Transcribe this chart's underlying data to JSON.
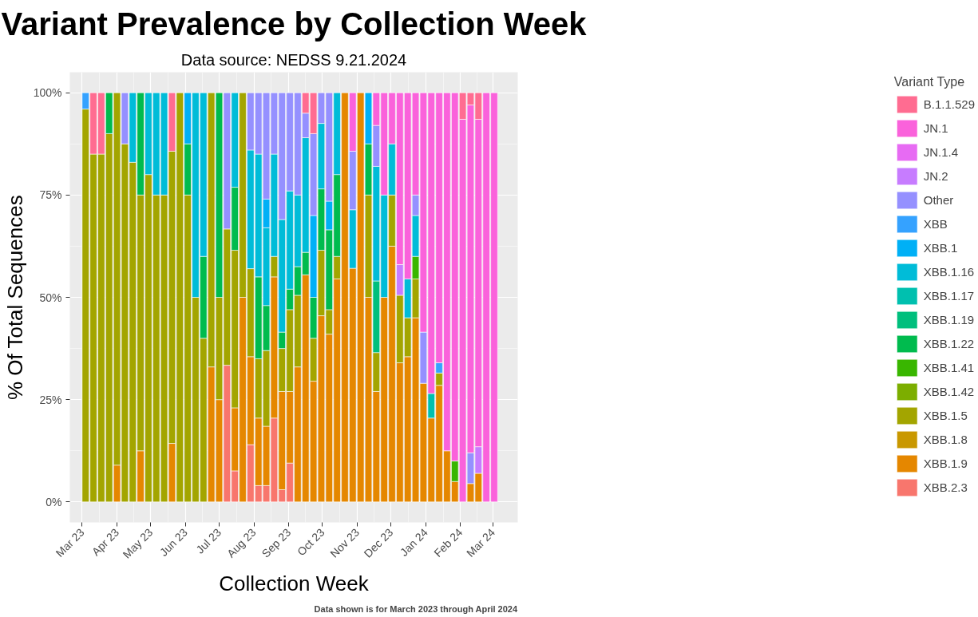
{
  "chart_data": {
    "type": "bar",
    "stacked": true,
    "title": "Variant Prevalence by Collection Week",
    "subtitle": "Data source: NEDSS 9.21.2024",
    "xlabel": "Collection Week",
    "ylabel": "% Of Total Sequences",
    "legend_title": "Variant Type",
    "legend": "right",
    "grid": true,
    "annotations": [
      "Data shown is for March 2023 through April 2024"
    ],
    "x": [
      "2023-03-04",
      "2023-03-11",
      "2023-03-18",
      "2023-03-25",
      "2023-04-01",
      "2023-04-08",
      "2023-04-15",
      "2023-04-22",
      "2023-04-29",
      "2023-05-06",
      "2023-05-13",
      "2023-05-20",
      "2023-05-27",
      "2023-06-03",
      "2023-06-10",
      "2023-06-17",
      "2023-06-24",
      "2023-07-01",
      "2023-07-08",
      "2023-07-15",
      "2023-07-22",
      "2023-07-29",
      "2023-08-05",
      "2023-08-12",
      "2023-08-19",
      "2023-08-26",
      "2023-09-02",
      "2023-09-09",
      "2023-09-16",
      "2023-09-23",
      "2023-09-30",
      "2023-10-07",
      "2023-10-14",
      "2023-10-21",
      "2023-10-28",
      "2023-11-04",
      "2023-11-11",
      "2023-11-18",
      "2023-11-25",
      "2023-12-02",
      "2023-12-09",
      "2023-12-16",
      "2023-12-23",
      "2023-12-30",
      "2024-01-06",
      "2024-01-13",
      "2024-01-20",
      "2024-01-27",
      "2024-02-03",
      "2024-02-10",
      "2024-02-17",
      "2024-02-24",
      "2024-03-02"
    ],
    "xlim": [
      "2023-02-18",
      "2024-03-23"
    ],
    "xticks": [
      {
        "value": "2023-03-01",
        "label": "Mar 23"
      },
      {
        "value": "2023-04-01",
        "label": "Apr 23"
      },
      {
        "value": "2023-05-01",
        "label": "May 23"
      },
      {
        "value": "2023-06-01",
        "label": "Jun 23"
      },
      {
        "value": "2023-07-01",
        "label": "Jul 23"
      },
      {
        "value": "2023-08-01",
        "label": "Aug 23"
      },
      {
        "value": "2023-09-01",
        "label": "Sep 23"
      },
      {
        "value": "2023-10-01",
        "label": "Oct 23"
      },
      {
        "value": "2023-11-01",
        "label": "Nov 23"
      },
      {
        "value": "2023-12-01",
        "label": "Dec 23"
      },
      {
        "value": "2024-01-01",
        "label": "Jan 24"
      },
      {
        "value": "2024-02-01",
        "label": "Feb 24"
      },
      {
        "value": "2024-03-01",
        "label": "Mar 24"
      }
    ],
    "ylim": [
      -5,
      105
    ],
    "yticks": [
      {
        "value": 0,
        "label": "0%"
      },
      {
        "value": 25,
        "label": "25%"
      },
      {
        "value": 50,
        "label": "50%"
      },
      {
        "value": 75,
        "label": "75%"
      },
      {
        "value": 100,
        "label": "100%"
      }
    ],
    "series": [
      {
        "name": "XBB.2.3",
        "color": "#F8766D",
        "values": [
          null,
          null,
          null,
          null,
          null,
          null,
          null,
          null,
          null,
          null,
          null,
          null,
          null,
          null,
          null,
          null,
          null,
          null,
          33.4,
          7.6,
          null,
          14,
          4,
          4,
          20.5,
          3,
          9.5,
          null,
          null,
          null,
          null,
          null,
          null,
          null,
          null,
          null,
          null,
          null,
          null,
          null,
          null,
          null,
          null,
          null,
          null,
          null,
          null,
          null,
          null,
          null,
          null,
          null,
          null
        ]
      },
      {
        "name": "XBB.1.9",
        "color": "#E58700",
        "values": [
          null,
          null,
          null,
          null,
          9,
          null,
          null,
          12.5,
          null,
          null,
          null,
          14.3,
          null,
          null,
          null,
          null,
          33,
          25,
          null,
          15.4,
          50,
          21.5,
          16.5,
          14.5,
          34.5,
          24,
          17.5,
          33,
          55.5,
          29.5,
          45.5,
          41,
          54.5,
          100,
          57.1,
          100,
          50,
          27,
          50,
          62.5,
          34,
          35.5,
          45,
          29,
          20.5,
          28.5,
          12.5,
          5,
          null,
          4.5,
          7,
          null,
          null
        ]
      },
      {
        "name": "XBB.1.8",
        "color": "#C99800",
        "values": [
          null,
          null,
          null,
          null,
          null,
          null,
          null,
          null,
          null,
          null,
          null,
          null,
          null,
          null,
          null,
          null,
          null,
          null,
          null,
          null,
          null,
          null,
          null,
          null,
          null,
          null,
          null,
          null,
          null,
          null,
          null,
          null,
          null,
          null,
          null,
          null,
          null,
          null,
          null,
          null,
          null,
          null,
          null,
          null,
          null,
          null,
          null,
          null,
          null,
          null,
          null,
          null,
          null
        ]
      },
      {
        "name": "XBB.1.5",
        "color": "#A3A500",
        "values": [
          96,
          85,
          85,
          90,
          91,
          87.5,
          83,
          62.5,
          80,
          75,
          75,
          71.4,
          100,
          75,
          50,
          40,
          67,
          25,
          33.3,
          38.5,
          50,
          21.5,
          14.5,
          18.5,
          5,
          10.5,
          20,
          17.5,
          null,
          10.5,
          16,
          6,
          5.5,
          null,
          null,
          null,
          25,
          9.5,
          null,
          12.5,
          16.5,
          9.5,
          9.5,
          null,
          null,
          3,
          null,
          null,
          null,
          null,
          null,
          null,
          null
        ]
      },
      {
        "name": "XBB.1.42",
        "color": "#7CAE00",
        "values": [
          null,
          null,
          null,
          null,
          null,
          null,
          null,
          null,
          null,
          null,
          null,
          null,
          null,
          null,
          null,
          null,
          null,
          null,
          null,
          null,
          null,
          null,
          null,
          null,
          null,
          null,
          null,
          null,
          null,
          null,
          null,
          null,
          null,
          null,
          null,
          null,
          null,
          null,
          null,
          null,
          null,
          null,
          null,
          null,
          null,
          null,
          null,
          null,
          null,
          null,
          null,
          null,
          null
        ]
      },
      {
        "name": "XBB.1.41",
        "color": "#39B600",
        "values": [
          null,
          null,
          null,
          null,
          null,
          null,
          null,
          null,
          null,
          null,
          null,
          null,
          null,
          null,
          null,
          null,
          null,
          null,
          null,
          null,
          null,
          null,
          null,
          null,
          null,
          null,
          null,
          null,
          null,
          null,
          null,
          null,
          null,
          null,
          null,
          null,
          null,
          null,
          null,
          null,
          null,
          null,
          5.5,
          null,
          null,
          null,
          null,
          5,
          null,
          null,
          null,
          null,
          null
        ]
      },
      {
        "name": "XBB.1.22",
        "color": "#00BB4E",
        "values": [
          null,
          null,
          null,
          10,
          null,
          null,
          null,
          25,
          null,
          null,
          null,
          null,
          null,
          12.5,
          null,
          20,
          null,
          50,
          null,
          15.4,
          null,
          null,
          20,
          11,
          null,
          4,
          5,
          7,
          5.5,
          10,
          15,
          19.5,
          20,
          null,
          null,
          null,
          12.5,
          null,
          null,
          null,
          null,
          null,
          null,
          null,
          null,
          null,
          null,
          null,
          null,
          null,
          null,
          null,
          null
        ]
      },
      {
        "name": "XBB.1.19",
        "color": "#00BF7D",
        "values": [
          null,
          null,
          null,
          null,
          null,
          null,
          null,
          null,
          null,
          null,
          null,
          null,
          null,
          null,
          null,
          null,
          null,
          null,
          null,
          null,
          null,
          null,
          null,
          null,
          null,
          null,
          null,
          null,
          null,
          null,
          null,
          null,
          null,
          null,
          null,
          null,
          null,
          17.5,
          null,
          null,
          null,
          null,
          null,
          null,
          null,
          null,
          null,
          null,
          null,
          null,
          null,
          null,
          null
        ]
      },
      {
        "name": "XBB.1.17",
        "color": "#00C0AF",
        "values": [
          null,
          null,
          null,
          null,
          null,
          null,
          null,
          null,
          null,
          null,
          null,
          null,
          null,
          null,
          null,
          null,
          null,
          null,
          null,
          null,
          null,
          null,
          null,
          null,
          null,
          null,
          null,
          null,
          null,
          null,
          null,
          null,
          null,
          null,
          null,
          null,
          null,
          null,
          null,
          null,
          null,
          null,
          null,
          null,
          6,
          null,
          null,
          null,
          null,
          null,
          null,
          null,
          null
        ]
      },
      {
        "name": "XBB.1.16",
        "color": "#00BCD8",
        "values": [
          null,
          null,
          null,
          null,
          null,
          null,
          17,
          null,
          20,
          25,
          25,
          null,
          null,
          null,
          50,
          40,
          null,
          null,
          null,
          23.1,
          null,
          29,
          30,
          19,
          25,
          27.5,
          24,
          17.5,
          28,
          null,
          16,
          null,
          20,
          null,
          14.3,
          null,
          null,
          28,
          25,
          12.5,
          null,
          9.5,
          10,
          null,
          null,
          null,
          null,
          null,
          null,
          null,
          null,
          null,
          null
        ]
      },
      {
        "name": "XBB.1",
        "color": "#00B0F6",
        "values": [
          null,
          null,
          null,
          null,
          null,
          null,
          null,
          null,
          null,
          null,
          null,
          null,
          null,
          12.5,
          null,
          null,
          null,
          null,
          null,
          null,
          null,
          null,
          null,
          7,
          null,
          null,
          null,
          null,
          null,
          20,
          null,
          7,
          null,
          null,
          null,
          null,
          12.5,
          null,
          null,
          null,
          null,
          null,
          null,
          null,
          null,
          null,
          null,
          null,
          null,
          null,
          null,
          null,
          null
        ]
      },
      {
        "name": "XBB",
        "color": "#35A2FF",
        "values": [
          4,
          null,
          null,
          null,
          null,
          null,
          null,
          null,
          null,
          null,
          null,
          null,
          null,
          null,
          null,
          null,
          null,
          null,
          null,
          null,
          null,
          null,
          null,
          null,
          null,
          null,
          null,
          null,
          null,
          null,
          null,
          null,
          null,
          null,
          null,
          null,
          null,
          null,
          null,
          null,
          null,
          null,
          null,
          null,
          null,
          2.5,
          null,
          null,
          null,
          null,
          null,
          null,
          null
        ]
      },
      {
        "name": "Other",
        "color": "#9590FF",
        "values": [
          null,
          null,
          null,
          null,
          null,
          12.5,
          null,
          null,
          null,
          null,
          null,
          null,
          null,
          null,
          null,
          null,
          null,
          null,
          33.3,
          null,
          null,
          14,
          15,
          26,
          15,
          31,
          24,
          25,
          6,
          20,
          7.5,
          26.5,
          null,
          null,
          14.3,
          null,
          null,
          10,
          null,
          null,
          null,
          null,
          5,
          12.5,
          null,
          null,
          null,
          null,
          null,
          7.5,
          null,
          null,
          null
        ]
      },
      {
        "name": "JN.2",
        "color": "#C77CFF",
        "values": [
          null,
          null,
          null,
          null,
          null,
          null,
          null,
          null,
          null,
          null,
          null,
          null,
          null,
          null,
          null,
          null,
          null,
          null,
          null,
          null,
          null,
          null,
          null,
          null,
          null,
          null,
          null,
          null,
          null,
          null,
          null,
          null,
          null,
          null,
          null,
          null,
          null,
          null,
          null,
          null,
          7.5,
          null,
          null,
          null,
          null,
          null,
          null,
          null,
          null,
          null,
          6.5,
          null,
          null
        ]
      },
      {
        "name": "JN.1.4",
        "color": "#E76BF3",
        "values": [
          null,
          null,
          null,
          null,
          null,
          null,
          null,
          null,
          null,
          null,
          null,
          null,
          null,
          null,
          null,
          null,
          null,
          null,
          null,
          null,
          null,
          null,
          null,
          null,
          null,
          null,
          null,
          null,
          null,
          null,
          null,
          null,
          null,
          null,
          null,
          null,
          null,
          null,
          null,
          null,
          null,
          null,
          null,
          null,
          null,
          null,
          null,
          null,
          null,
          null,
          null,
          null,
          null
        ]
      },
      {
        "name": "JN.1",
        "color": "#FA62DB",
        "values": [
          null,
          null,
          null,
          null,
          null,
          null,
          null,
          null,
          null,
          null,
          null,
          null,
          null,
          null,
          null,
          null,
          null,
          null,
          null,
          null,
          null,
          null,
          null,
          null,
          null,
          null,
          null,
          null,
          null,
          null,
          null,
          null,
          null,
          null,
          14.3,
          null,
          null,
          8,
          25,
          12.5,
          42,
          45.5,
          25,
          58.5,
          73.5,
          66,
          87.5,
          90,
          93.5,
          85,
          80,
          100,
          100
        ]
      },
      {
        "name": "B.1.1.529",
        "color": "#FF6C91",
        "values": [
          null,
          15,
          15,
          null,
          null,
          null,
          null,
          null,
          null,
          null,
          null,
          14.3,
          null,
          null,
          null,
          null,
          null,
          null,
          null,
          null,
          null,
          null,
          null,
          null,
          null,
          null,
          null,
          null,
          5,
          10,
          null,
          null,
          null,
          null,
          null,
          null,
          null,
          null,
          null,
          null,
          null,
          null,
          null,
          null,
          null,
          null,
          null,
          null,
          6.5,
          3,
          6.5,
          null,
          null
        ]
      }
    ]
  }
}
